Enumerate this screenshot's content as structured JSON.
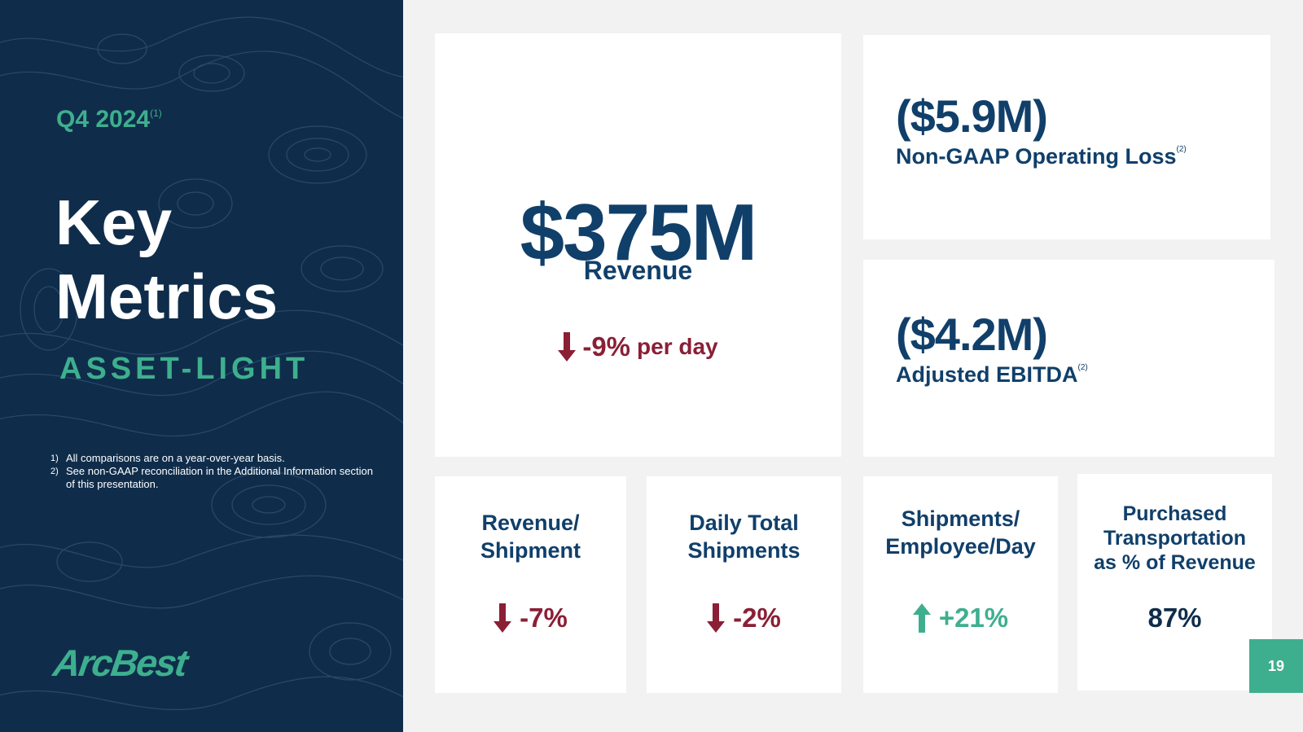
{
  "left": {
    "period": "Q4 2024",
    "period_note": "(1)",
    "title_line1": "Key",
    "title_line2": "Metrics",
    "subtitle": "ASSET-LIGHT",
    "footnotes": [
      {
        "num": "1)",
        "text": "All comparisons are on a year-over-year basis."
      },
      {
        "num": "2)",
        "text": "See non-GAAP reconciliation in the Additional Information section of this presentation."
      }
    ],
    "logo_text": "ArcBest"
  },
  "revenue": {
    "value": "$375M",
    "label": "Revenue",
    "change": "-9%",
    "change_unit": "per day",
    "direction": "down"
  },
  "operating_loss": {
    "value": "($5.9M)",
    "label": "Non-GAAP Operating Loss",
    "note": "(2)"
  },
  "ebitda": {
    "value": "($4.2M)",
    "label": "Adjusted EBITDA",
    "note": "(2)"
  },
  "metrics": [
    {
      "label_lines": [
        "Revenue/",
        "Shipment"
      ],
      "value": "-7%",
      "direction": "down"
    },
    {
      "label_lines": [
        "Daily Total",
        "Shipments"
      ],
      "value": "-2%",
      "direction": "down"
    },
    {
      "label_lines": [
        "Shipments/",
        "Employee/Day"
      ],
      "value": "+21%",
      "direction": "up"
    },
    {
      "label_lines": [
        "Purchased",
        "Transportation",
        "as % of Revenue"
      ],
      "value": "87%",
      "direction": "none"
    }
  ],
  "page_number": "19",
  "colors": {
    "navy": "#0f2d4b",
    "value_blue": "#103f6a",
    "teal": "#3eaf8e",
    "down_red": "#8a1f35",
    "background": "#f2f2f2"
  },
  "icons": {
    "down": "arrow-down-icon",
    "up": "arrow-up-icon"
  }
}
